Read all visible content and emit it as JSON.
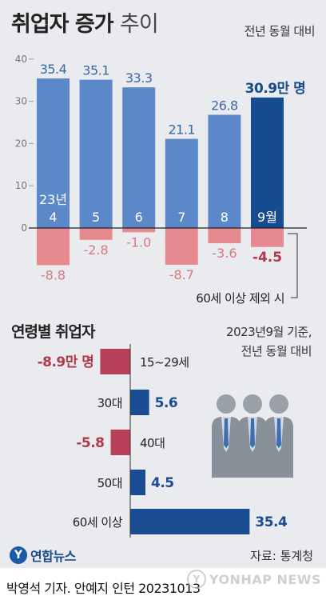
{
  "header": {
    "title_bold": "취업자 증가",
    "title_light": "추이",
    "note": "전년 동월 대비"
  },
  "section2": {
    "title": "연령별 취업자",
    "note_line1": "2023년9월 기준,",
    "note_line2": "전년 동월 대비"
  },
  "footer": {
    "logo_text": "연합뉴스",
    "source": "자료: 통계청",
    "credit": "박영석 기자. 안예지 인턴  20231013",
    "watermark": "YONHAP NEWS"
  },
  "colors": {
    "blue": "#5b88c8",
    "blue_highlight": "#154b8f",
    "pink": "#e78a8f",
    "red_text": "#b0394e",
    "crimson_bar": "#b8415a",
    "navy_bar": "#1a4c91",
    "panel": "#e9ebee"
  },
  "chart_data": [
    {
      "type": "bar",
      "categories": [
        "4",
        "5",
        "6",
        "7",
        "8",
        "9"
      ],
      "category_display": [
        "23년\n4",
        "5",
        "6",
        "7",
        "8",
        "9월"
      ],
      "series": [
        {
          "values": [
            35.4,
            35.1,
            33.3,
            21.1,
            26.8,
            30.9
          ]
        },
        {
          "name": "60세 이상 제외 시",
          "values": [
            -8.8,
            -2.8,
            -1.0,
            -8.7,
            -3.6,
            -4.5
          ]
        }
      ],
      "total_labels": [
        "35.4",
        "35.1",
        "33.3",
        "21.1",
        "26.8",
        "30.9만 명"
      ],
      "excl_labels": [
        "-8.8",
        "-2.8",
        "-1.0",
        "-8.7",
        "-3.6",
        "-4.5"
      ],
      "yticks": [
        40,
        30,
        20,
        10,
        0
      ],
      "ylim": [
        -10,
        40
      ],
      "highlight_index": 5,
      "annotation": "60세 이상 제외 시"
    },
    {
      "type": "bar",
      "orientation": "horizontal",
      "categories": [
        "15~29세",
        "30대",
        "40대",
        "50대",
        "60세 이상"
      ],
      "values": [
        -8.9,
        5.6,
        -5.8,
        4.5,
        35.4
      ],
      "value_labels": [
        "-8.9만 명",
        "5.6",
        "-5.8",
        "4.5",
        "35.4"
      ]
    }
  ]
}
